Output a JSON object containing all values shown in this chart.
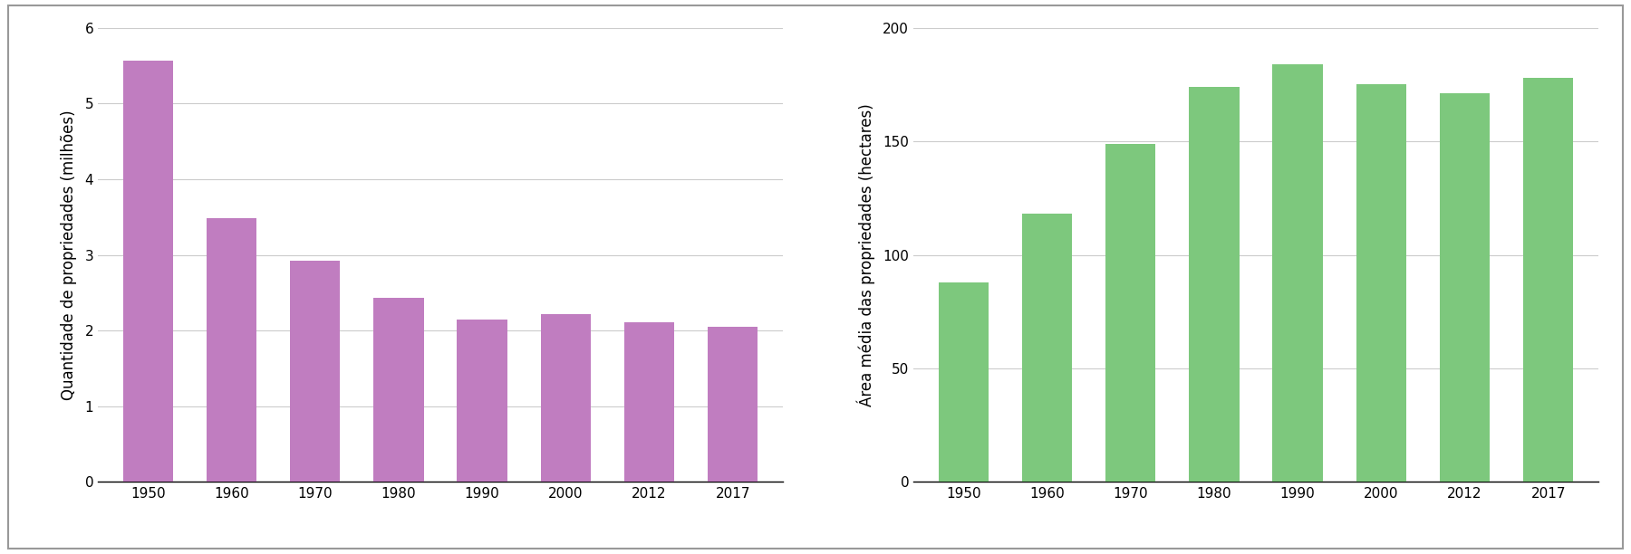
{
  "years": [
    "1950",
    "1960",
    "1970",
    "1980",
    "1990",
    "2000",
    "2012",
    "2017"
  ],
  "chart1_values": [
    5.57,
    3.48,
    2.92,
    2.43,
    2.15,
    2.22,
    2.11,
    2.05
  ],
  "chart1_ylabel": "Quantidade de propriedades (milhões)",
  "chart1_ylim": [
    0,
    6
  ],
  "chart1_yticks": [
    0,
    1,
    2,
    3,
    4,
    5,
    6
  ],
  "chart1_bar_color": "#c07dc0",
  "chart2_values": [
    88,
    118,
    149,
    174,
    184,
    175,
    171,
    178
  ],
  "chart2_ylabel": "Área média das propriedades (hectares)",
  "chart2_ylim": [
    0,
    200
  ],
  "chart2_yticks": [
    0,
    50,
    100,
    150,
    200
  ],
  "chart2_bar_color": "#7dc87d",
  "background_color": "#ffffff",
  "border_color": "#999999",
  "grid_color": "#cccccc",
  "tick_label_fontsize": 11,
  "ylabel_fontsize": 12,
  "bar_width": 0.6
}
